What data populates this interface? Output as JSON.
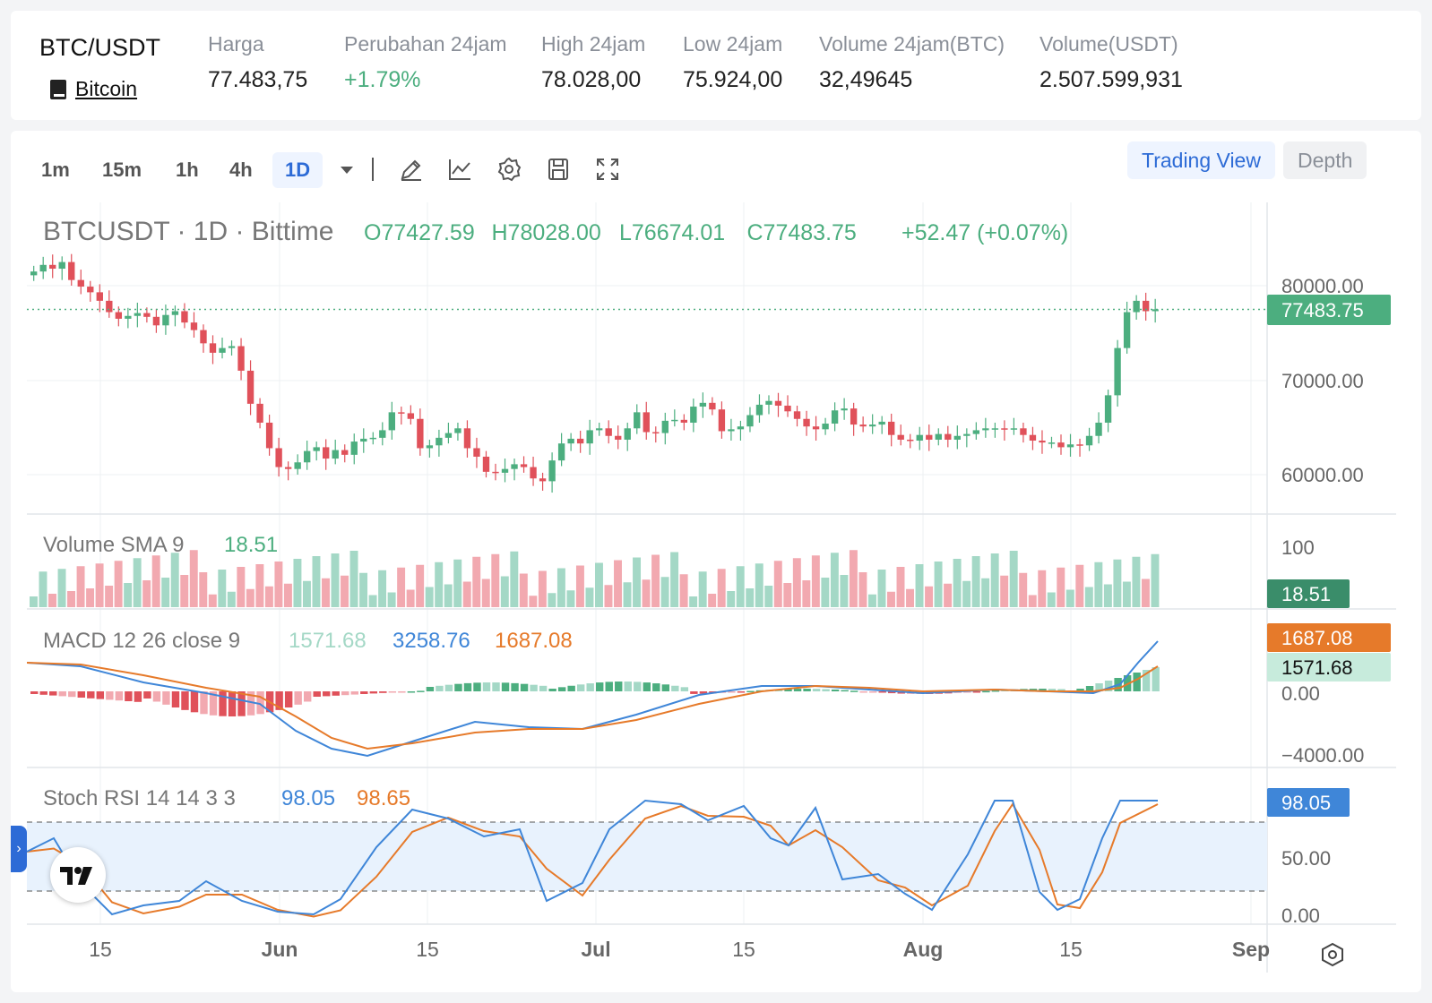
{
  "ticker": {
    "pair": "BTC/USDT",
    "coin_name": "Bitcoin",
    "stats": [
      {
        "key": "Harga",
        "value": "77.483,75",
        "up": false
      },
      {
        "key": "Perubahan 24jam",
        "value": "+1.79%",
        "up": true
      },
      {
        "key": "High 24jam",
        "value": "78.028,00",
        "up": false
      },
      {
        "key": "Low 24jam",
        "value": "75.924,00",
        "up": false
      },
      {
        "key": "Volume 24jam(BTC)",
        "value": "32,49645",
        "up": false
      },
      {
        "key": "Volume(USDT)",
        "value": "2.507.599,931",
        "up": false
      }
    ]
  },
  "toolbar": {
    "timeframes": [
      "1m",
      "15m",
      "1h",
      "4h",
      "1D"
    ],
    "active_timeframe": "1D",
    "tools": [
      "pencil-icon",
      "indicator-icon",
      "gear-icon",
      "save-icon",
      "fullscreen-icon"
    ],
    "view_trading": "Trading View",
    "view_depth": "Depth"
  },
  "chart": {
    "symbol_title": "BTCUSDT · 1D · Bittime",
    "ohlc": {
      "o": "O77427.59",
      "h": "H78028.00",
      "l": "L76674.01",
      "c": "C77483.75",
      "chg": "+52.47 (+0.07%)"
    },
    "price_axis": [
      "80000.00",
      "70000.00",
      "60000.00"
    ],
    "last_price_label": "77483.75",
    "volume_title": "Volume SMA 9",
    "volume_value": "18.51",
    "volume_axis": "100",
    "macd_title": "MACD 12 26 close 9",
    "macd_hist_value": "1571.68",
    "macd_value": "3258.76",
    "macd_signal_value": "1687.08",
    "macd_axis": [
      "0.00",
      "−4000.00"
    ],
    "stoch_title": "Stoch RSI 14 14 3 3",
    "stoch_k_value": "98.05",
    "stoch_d_value": "98.65",
    "stoch_axis": [
      "50.00",
      "0.00"
    ],
    "time_axis": [
      "15",
      "Jun",
      "15",
      "Jul",
      "15",
      "Aug",
      "15",
      "Sep"
    ],
    "colors": {
      "up": "#4cae7f",
      "down": "#e0515a",
      "vol_up": "#a4d8c6",
      "vol_down": "#f2a9b0",
      "macd": "#3f86d8",
      "signal": "#e67a2a",
      "stoch_band": "#e8f2fd"
    }
  },
  "chart_data": {
    "type": "candlestick",
    "price_ylim": [
      56000,
      83000
    ],
    "price_close_approx": [
      81500,
      82200,
      81800,
      82500,
      80600,
      79900,
      79300,
      78400,
      77200,
      76500,
      76800,
      77100,
      76700,
      75800,
      76900,
      77300,
      76100,
      75300,
      73900,
      72900,
      73400,
      73600,
      71000,
      67500,
      65500,
      62800,
      60800,
      60600,
      61300,
      62500,
      62900,
      61700,
      62600,
      62100,
      63500,
      63800,
      63900,
      64700,
      66600,
      66500,
      65900,
      62800,
      63100,
      63900,
      64400,
      64900,
      62800,
      61900,
      60300,
      60200,
      60600,
      61100,
      60800,
      59600,
      59300,
      61500,
      63300,
      63800,
      63300,
      64700,
      64900,
      64100,
      63700,
      64900,
      66600,
      64500,
      64400,
      65700,
      65800,
      65500,
      67200,
      67600,
      66900,
      64600,
      64800,
      65100,
      66300,
      67400,
      67800,
      67300,
      66700,
      65900,
      65100,
      64800,
      65400,
      66800,
      67000,
      65300,
      65100,
      65300,
      65600,
      64200,
      63700,
      63600,
      64200,
      63700,
      64300,
      63700,
      64100,
      64300,
      64700,
      64900,
      64900,
      64800,
      64900,
      64200,
      63600,
      63400,
      63400,
      62900,
      63200,
      63100,
      64100,
      65500,
      68400,
      73400,
      77200,
      78400,
      77300,
      77500
    ]
  }
}
